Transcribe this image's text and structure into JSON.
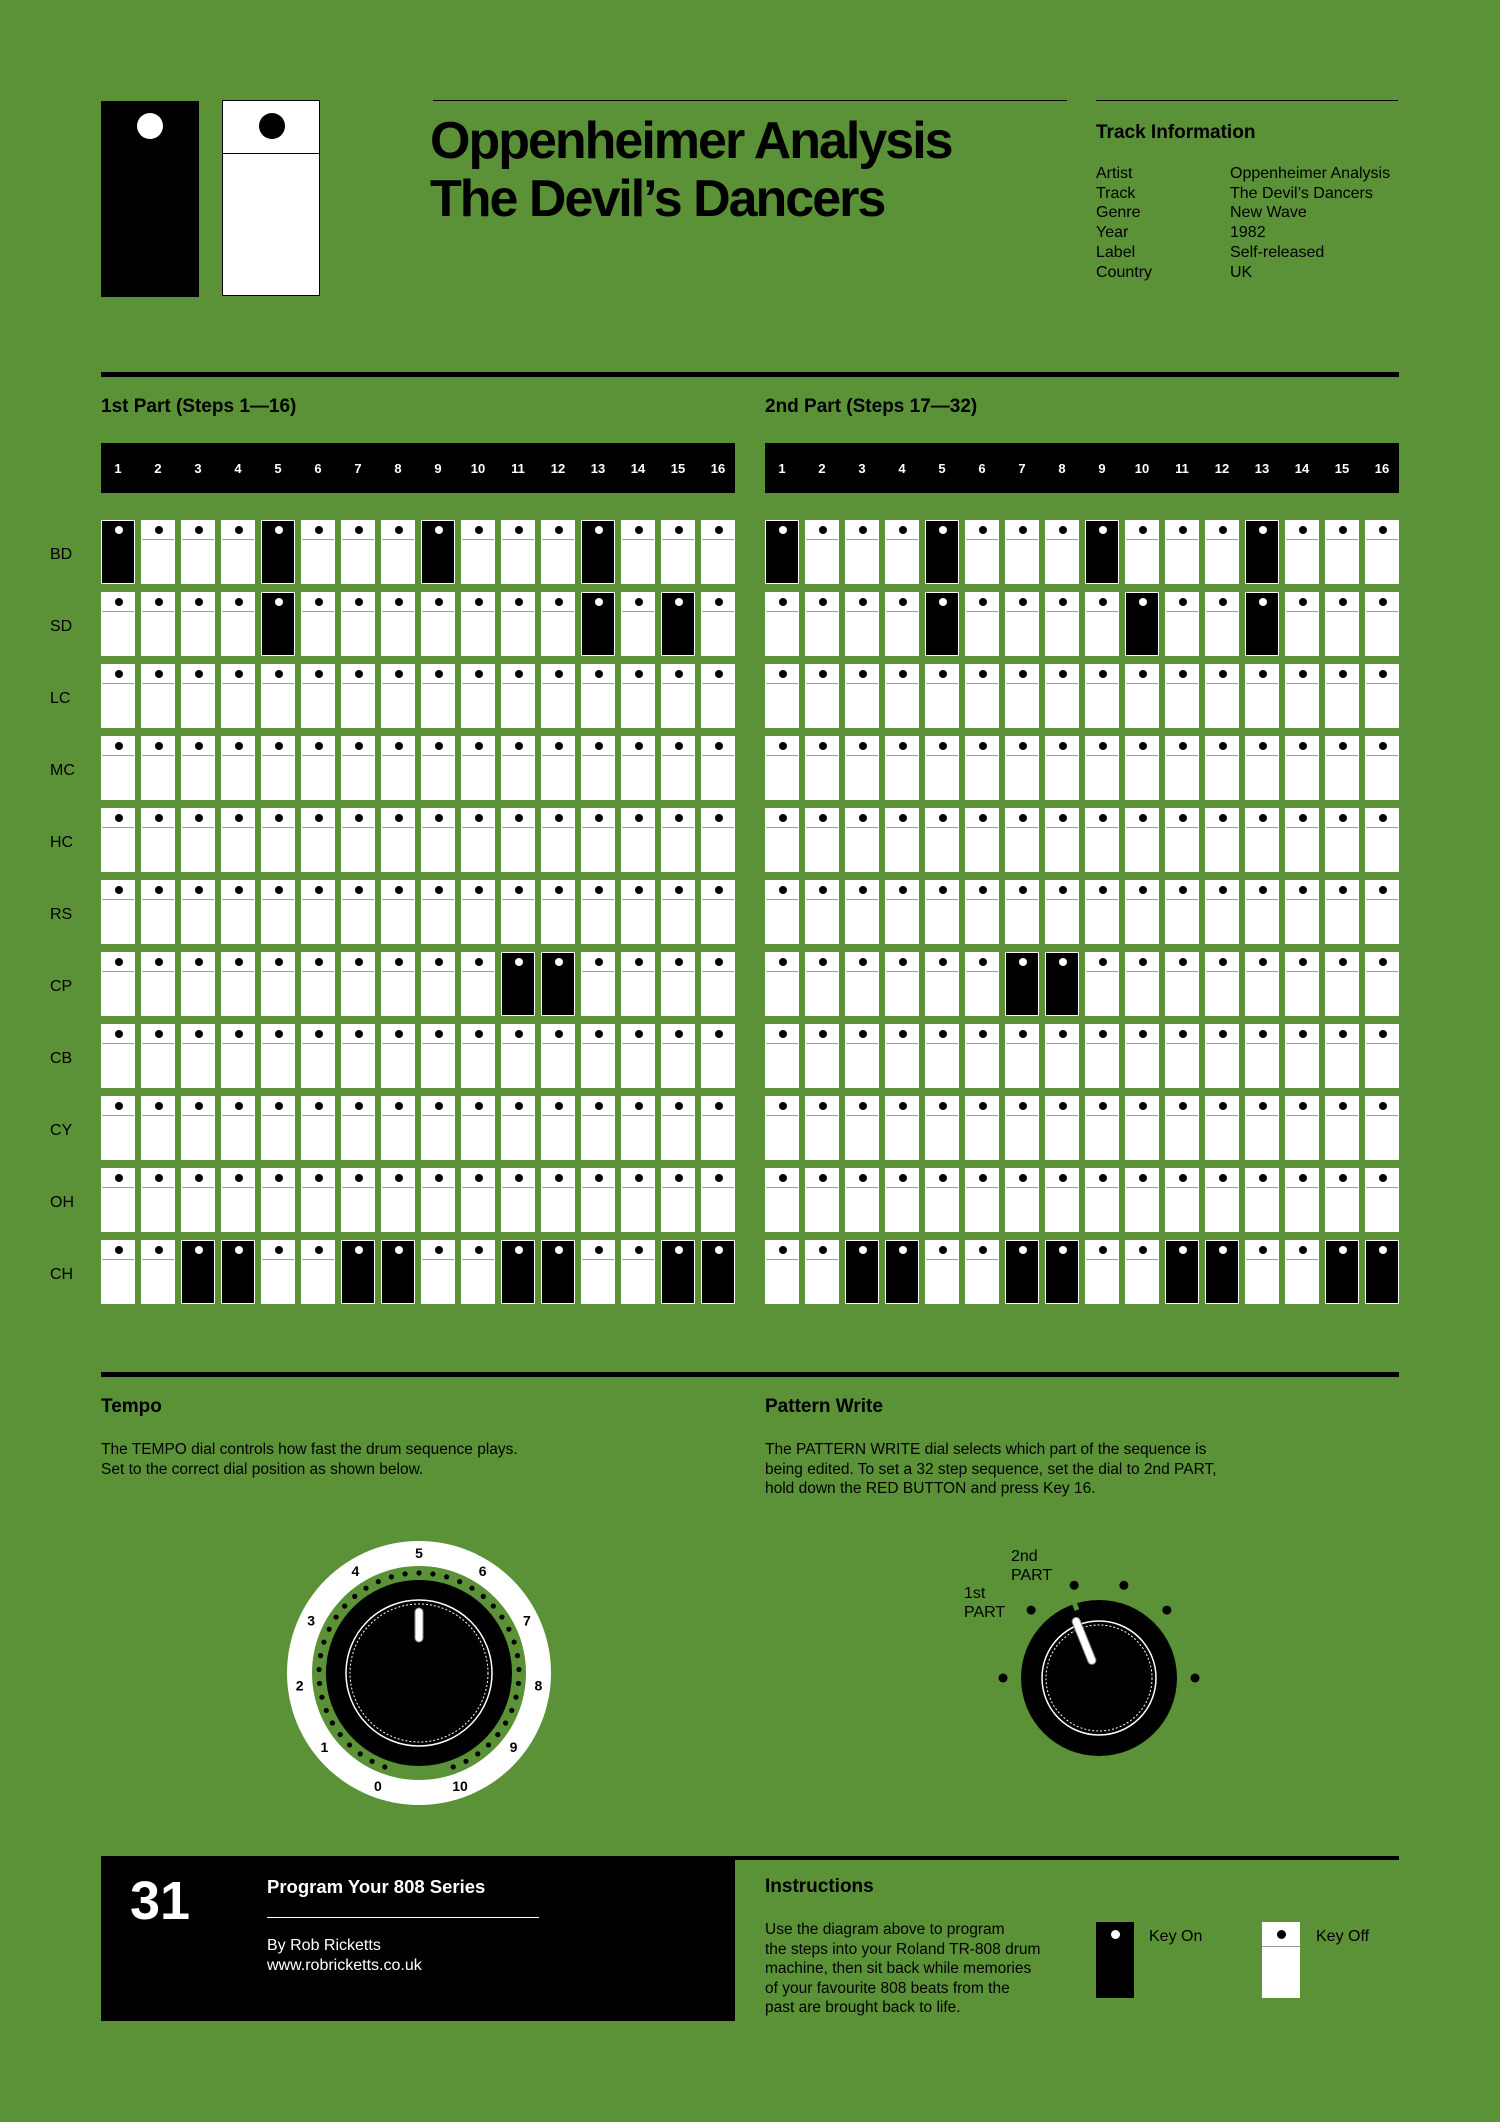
{
  "header": {
    "title_line1": "Oppenheimer Analysis",
    "title_line2": "The Devil’s Dancers"
  },
  "track_info": {
    "heading": "Track Information",
    "rows": [
      {
        "key": "Artist",
        "value": "Oppenheimer Analysis"
      },
      {
        "key": "Track",
        "value": "The Devil’s Dancers"
      },
      {
        "key": "Genre",
        "value": "New Wave"
      },
      {
        "key": "Year",
        "value": "1982"
      },
      {
        "key": "Label",
        "value": "Self-released"
      },
      {
        "key": "Country",
        "value": "UK"
      }
    ]
  },
  "sequencer": {
    "part1_label": "1st Part (Steps 1—16)",
    "part2_label": "2nd Part (Steps 17—32)",
    "step_numbers": [
      "1",
      "2",
      "3",
      "4",
      "5",
      "6",
      "7",
      "8",
      "9",
      "10",
      "11",
      "12",
      "13",
      "14",
      "15",
      "16"
    ],
    "instruments": [
      {
        "name": "BD",
        "part1": [
          1,
          0,
          0,
          0,
          1,
          0,
          0,
          0,
          1,
          0,
          0,
          0,
          1,
          0,
          0,
          0
        ],
        "part2": [
          1,
          0,
          0,
          0,
          1,
          0,
          0,
          0,
          1,
          0,
          0,
          0,
          1,
          0,
          0,
          0
        ]
      },
      {
        "name": "SD",
        "part1": [
          0,
          0,
          0,
          0,
          1,
          0,
          0,
          0,
          0,
          0,
          0,
          0,
          1,
          0,
          1,
          0
        ],
        "part2": [
          0,
          0,
          0,
          0,
          1,
          0,
          0,
          0,
          0,
          1,
          0,
          0,
          1,
          0,
          0,
          0
        ]
      },
      {
        "name": "LC",
        "part1": [
          0,
          0,
          0,
          0,
          0,
          0,
          0,
          0,
          0,
          0,
          0,
          0,
          0,
          0,
          0,
          0
        ],
        "part2": [
          0,
          0,
          0,
          0,
          0,
          0,
          0,
          0,
          0,
          0,
          0,
          0,
          0,
          0,
          0,
          0
        ]
      },
      {
        "name": "MC",
        "part1": [
          0,
          0,
          0,
          0,
          0,
          0,
          0,
          0,
          0,
          0,
          0,
          0,
          0,
          0,
          0,
          0
        ],
        "part2": [
          0,
          0,
          0,
          0,
          0,
          0,
          0,
          0,
          0,
          0,
          0,
          0,
          0,
          0,
          0,
          0
        ]
      },
      {
        "name": "HC",
        "part1": [
          0,
          0,
          0,
          0,
          0,
          0,
          0,
          0,
          0,
          0,
          0,
          0,
          0,
          0,
          0,
          0
        ],
        "part2": [
          0,
          0,
          0,
          0,
          0,
          0,
          0,
          0,
          0,
          0,
          0,
          0,
          0,
          0,
          0,
          0
        ]
      },
      {
        "name": "RS",
        "part1": [
          0,
          0,
          0,
          0,
          0,
          0,
          0,
          0,
          0,
          0,
          0,
          0,
          0,
          0,
          0,
          0
        ],
        "part2": [
          0,
          0,
          0,
          0,
          0,
          0,
          0,
          0,
          0,
          0,
          0,
          0,
          0,
          0,
          0,
          0
        ]
      },
      {
        "name": "CP",
        "part1": [
          0,
          0,
          0,
          0,
          0,
          0,
          0,
          0,
          0,
          0,
          1,
          1,
          0,
          0,
          0,
          0
        ],
        "part2": [
          0,
          0,
          0,
          0,
          0,
          0,
          1,
          1,
          0,
          0,
          0,
          0,
          0,
          0,
          0,
          0
        ]
      },
      {
        "name": "CB",
        "part1": [
          0,
          0,
          0,
          0,
          0,
          0,
          0,
          0,
          0,
          0,
          0,
          0,
          0,
          0,
          0,
          0
        ],
        "part2": [
          0,
          0,
          0,
          0,
          0,
          0,
          0,
          0,
          0,
          0,
          0,
          0,
          0,
          0,
          0,
          0
        ]
      },
      {
        "name": "CY",
        "part1": [
          0,
          0,
          0,
          0,
          0,
          0,
          0,
          0,
          0,
          0,
          0,
          0,
          0,
          0,
          0,
          0
        ],
        "part2": [
          0,
          0,
          0,
          0,
          0,
          0,
          0,
          0,
          0,
          0,
          0,
          0,
          0,
          0,
          0,
          0
        ]
      },
      {
        "name": "OH",
        "part1": [
          0,
          0,
          0,
          0,
          0,
          0,
          0,
          0,
          0,
          0,
          0,
          0,
          0,
          0,
          0,
          0
        ],
        "part2": [
          0,
          0,
          0,
          0,
          0,
          0,
          0,
          0,
          0,
          0,
          0,
          0,
          0,
          0,
          0,
          0
        ]
      },
      {
        "name": "CH",
        "part1": [
          0,
          0,
          1,
          1,
          0,
          0,
          1,
          1,
          0,
          0,
          1,
          1,
          0,
          0,
          1,
          1
        ],
        "part2": [
          0,
          0,
          1,
          1,
          0,
          0,
          1,
          1,
          0,
          0,
          1,
          1,
          0,
          0,
          1,
          1
        ]
      }
    ]
  },
  "tempo": {
    "heading": "Tempo",
    "text_line1": "The TEMPO dial controls how fast the drum sequence plays.",
    "text_line2": "Set to the correct dial position as shown below.",
    "dial_labels": [
      "0",
      "1",
      "2",
      "3",
      "4",
      "5",
      "6",
      "7",
      "8",
      "9",
      "10"
    ],
    "setting": 5
  },
  "pattern_write": {
    "heading": "Pattern Write",
    "text_line1": "The PATTERN WRITE dial selects which part of the sequence is",
    "text_line2": "being edited. To set a 32 step sequence, set the dial to 2nd PART,",
    "text_line3": "hold down the RED BUTTON and press Key 16.",
    "label_1st_a": "1st",
    "label_1st_b": "PART",
    "label_2nd_a": "2nd",
    "label_2nd_b": "PART",
    "selected": "2nd PART"
  },
  "footer": {
    "number": "31",
    "series": "Program Your 808 Series",
    "author": "By Rob Ricketts",
    "website": "www.robricketts.co.uk"
  },
  "instructions": {
    "heading": "Instructions",
    "line1": "Use the diagram above to program",
    "line2": "the steps into your Roland TR-808 drum",
    "line3": "machine, then sit back while memories",
    "line4": "of your favourite 808 beats from the",
    "line5": "past are brought back to life.",
    "key_on": "Key On",
    "key_off": "Key Off"
  },
  "colors": {
    "background": "#5b9137",
    "key_on": "#000000",
    "key_off": "#ffffff"
  }
}
